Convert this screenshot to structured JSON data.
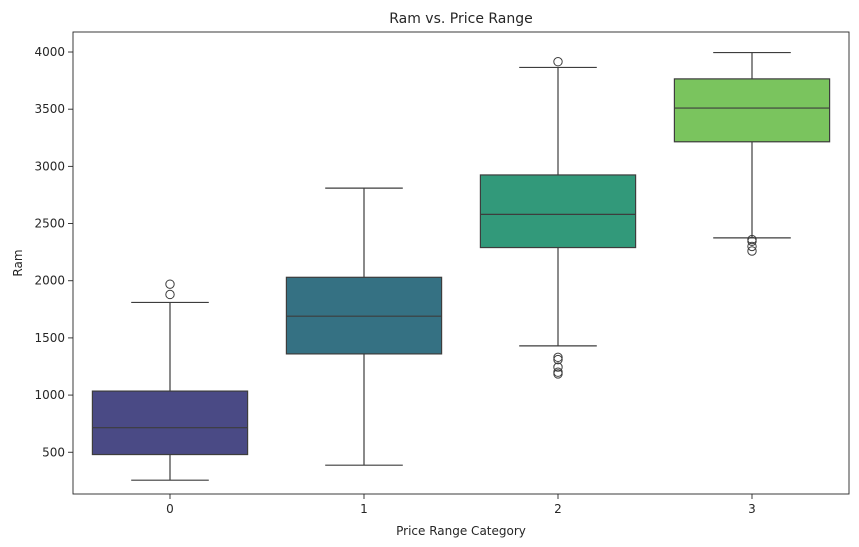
{
  "chart_data": {
    "type": "box",
    "title": "Ram vs. Price Range",
    "xlabel": "Price Range Category",
    "ylabel": "Ram",
    "ylim": [
      135,
      4175
    ],
    "yticks": [
      500,
      1000,
      1500,
      2000,
      2500,
      3000,
      3500,
      4000
    ],
    "grid": false,
    "categories": [
      "0",
      "1",
      "2",
      "3"
    ],
    "boxes": [
      {
        "category": "0",
        "whisker_low": 256,
        "q1": 480,
        "median": 715,
        "q3": 1035,
        "whisker_high": 1810,
        "outliers": [
          1880,
          1970
        ],
        "color": "#4a4a85"
      },
      {
        "category": "1",
        "whisker_low": 387,
        "q1": 1360,
        "median": 1690,
        "q3": 2030,
        "whisker_high": 2810,
        "outliers": [],
        "color": "#357183"
      },
      {
        "category": "2",
        "whisker_low": 1430,
        "q1": 2290,
        "median": 2580,
        "q3": 2925,
        "whisker_high": 3865,
        "outliers": [
          1185,
          1200,
          1245,
          1310,
          1330,
          3915
        ],
        "color": "#32997a"
      },
      {
        "category": "3",
        "whisker_low": 2375,
        "q1": 3215,
        "median": 3510,
        "q3": 3765,
        "whisker_high": 3995,
        "outliers": [
          2260,
          2300,
          2345,
          2360
        ],
        "color": "#7ac45e"
      }
    ]
  }
}
